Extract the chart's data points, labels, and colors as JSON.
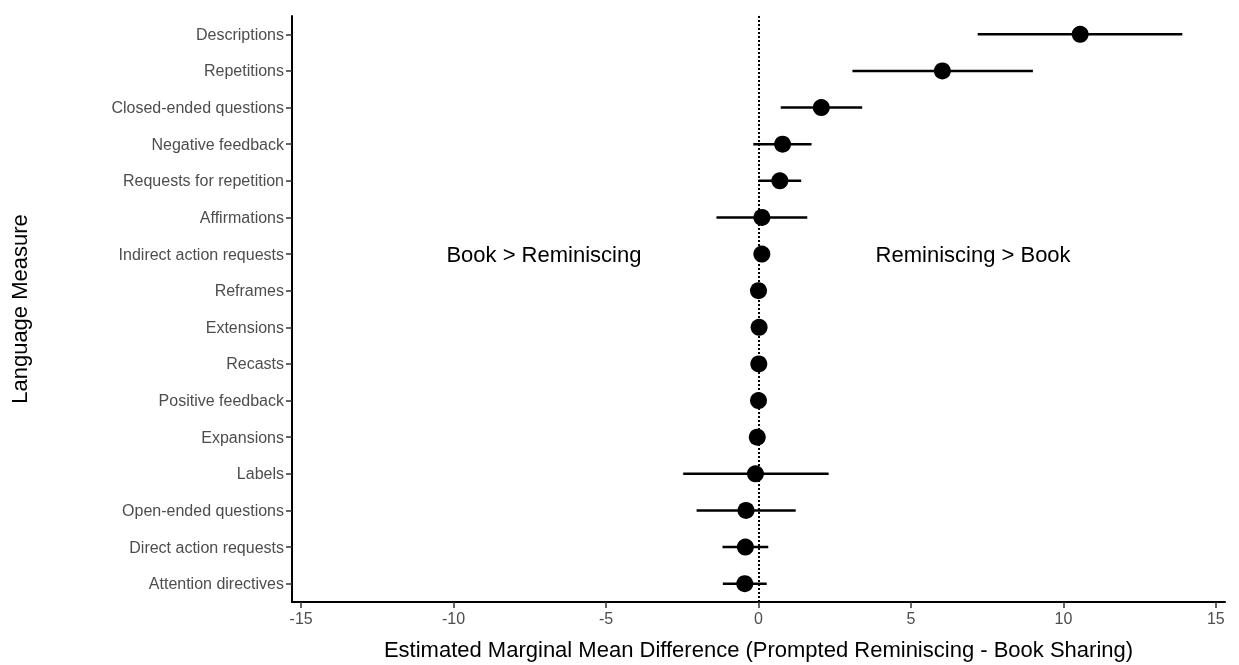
{
  "chart_data": {
    "type": "scatter",
    "orientation": "horizontal",
    "xlabel": "Estimated Marginal Mean Difference (Prompted Reminiscing - Book Sharing)",
    "ylabel": "Language Measure",
    "categories": [
      "Descriptions",
      "Repetitions",
      "Closed-ended questions",
      "Negative feedback",
      "Requests for repetition",
      "Affirmations",
      "Indirect action requests",
      "Reframes",
      "Extensions",
      "Recasts",
      "Positive feedback",
      "Expansions",
      "Labels",
      "Open-ended questions",
      "Direct action requests",
      "Attention directives"
    ],
    "series": [
      {
        "color": "#000000",
        "values": [
          10.55,
          6.03,
          2.06,
          0.79,
          0.7,
          0.11,
          0.11,
          0,
          0.02,
          0.01,
          0,
          -0.04,
          -0.1,
          -0.41,
          -0.43,
          -0.45
        ],
        "errors": [
          [
            7.19,
            13.9
          ],
          [
            3.08,
            9.0
          ],
          [
            0.73,
            3.4
          ],
          [
            -0.17,
            1.74
          ],
          [
            0.0,
            1.4
          ],
          [
            -1.38,
            1.6
          ],
          null,
          null,
          null,
          null,
          null,
          null,
          [
            -2.47,
            2.3
          ],
          [
            -2.03,
            1.22
          ],
          [
            -1.18,
            0.32
          ],
          [
            -1.17,
            0.27
          ]
        ]
      }
    ],
    "xlim": [
      -15.3,
      15.3
    ],
    "xticks": [
      -15,
      -10,
      -5,
      0,
      5,
      10,
      15
    ],
    "grid": false,
    "marker": "circle",
    "ref_lines": [
      {
        "axis": "x",
        "value": 0,
        "line_style": "dotted",
        "color": "#000000"
      }
    ],
    "annotations": [
      "Book > Reminiscing",
      "Reminiscing > Book"
    ]
  }
}
